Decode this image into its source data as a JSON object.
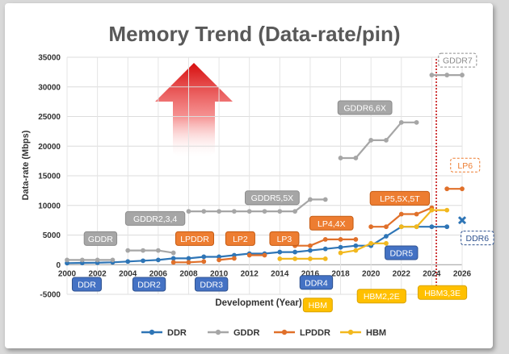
{
  "chart_data": {
    "type": "line",
    "title": "Memory Trend (Data-rate/pin)",
    "xlabel": "Development (Year)",
    "ylabel": "Data-rate (Mbps)",
    "xlim": [
      2000,
      2026
    ],
    "ylim": [
      -5000,
      35000
    ],
    "x_ticks": [
      "2000",
      "2002",
      "2004",
      "2006",
      "2008",
      "2010",
      "2012",
      "2014",
      "2016",
      "2018",
      "2020",
      "2022",
      "2024",
      "2026"
    ],
    "y_ticks": [
      "-5000",
      "0",
      "5000",
      "10000",
      "15000",
      "20000",
      "25000",
      "30000",
      "35000"
    ],
    "grid": true,
    "legend_position": "bottom",
    "colors": {
      "DDR": "#2e75b6",
      "GDDR": "#a6a6a6",
      "LPDDR": "#e0702a",
      "HBM": "#f2b81e",
      "future_line": "#c00000",
      "arrow": "#e02020"
    },
    "series": [
      {
        "name": "DDR",
        "points": [
          [
            2000,
            266
          ],
          [
            2001,
            300
          ],
          [
            2002,
            333
          ],
          [
            2003,
            400
          ],
          [
            2004,
            533
          ],
          [
            2005,
            667
          ],
          [
            2006,
            800
          ],
          [
            2007,
            1066
          ],
          [
            2008,
            1066
          ],
          [
            2009,
            1333
          ],
          [
            2010,
            1333
          ],
          [
            2011,
            1600
          ],
          [
            2012,
            1866
          ],
          [
            2013,
            1866
          ],
          [
            2014,
            2133
          ],
          [
            2015,
            2133
          ],
          [
            2016,
            2400
          ],
          [
            2017,
            2666
          ],
          [
            2018,
            2933
          ],
          [
            2019,
            3200
          ],
          [
            2020,
            3200
          ],
          [
            2021,
            4800
          ],
          [
            2022,
            6400
          ],
          [
            2023,
            6400
          ],
          [
            2024,
            6400
          ],
          [
            2025,
            6400
          ]
        ]
      },
      {
        "name": "GDDR",
        "segments": [
          [
            [
              2000,
              800
            ],
            [
              2001,
              800
            ],
            [
              2002,
              800
            ],
            [
              2003,
              800
            ]
          ],
          [
            [
              2004,
              2400
            ],
            [
              2005,
              2400
            ],
            [
              2006,
              2400
            ],
            [
              2007,
              2000
            ]
          ],
          [
            [
              2008,
              9000
            ],
            [
              2009,
              9000
            ],
            [
              2010,
              9000
            ],
            [
              2011,
              9000
            ],
            [
              2012,
              9000
            ],
            [
              2013,
              9000
            ],
            [
              2014,
              9000
            ],
            [
              2015,
              9000
            ],
            [
              2016,
              11000
            ],
            [
              2017,
              11000
            ]
          ],
          [
            [
              2018,
              18000
            ],
            [
              2019,
              18000
            ],
            [
              2020,
              21000
            ],
            [
              2021,
              21000
            ],
            [
              2022,
              24000
            ],
            [
              2023,
              24000
            ]
          ],
          [
            [
              2024,
              32000
            ],
            [
              2025,
              32000
            ],
            [
              2026,
              32000
            ]
          ]
        ]
      },
      {
        "name": "LPDDR",
        "segments": [
          [
            [
              2007,
              400
            ],
            [
              2008,
              400
            ],
            [
              2009,
              533
            ]
          ],
          [
            [
              2010,
              800
            ],
            [
              2011,
              1066
            ]
          ],
          [
            [
              2012,
              1600
            ],
            [
              2013,
              1600
            ]
          ],
          [
            [
              2015,
              3200
            ],
            [
              2016,
              3200
            ],
            [
              2017,
              4266
            ],
            [
              2018,
              4266
            ],
            [
              2019,
              4266
            ]
          ],
          [
            [
              2020,
              6400
            ],
            [
              2021,
              6400
            ],
            [
              2022,
              8533
            ],
            [
              2023,
              8533
            ],
            [
              2024,
              9600
            ]
          ],
          [
            [
              2025,
              12800
            ],
            [
              2026,
              12800
            ]
          ]
        ]
      },
      {
        "name": "HBM",
        "segments": [
          [
            [
              2014,
              1000
            ],
            [
              2015,
              1000
            ],
            [
              2016,
              1000
            ],
            [
              2017,
              1000
            ]
          ],
          [
            [
              2018,
              2000
            ],
            [
              2019,
              2400
            ],
            [
              2020,
              3600
            ],
            [
              2021,
              3600
            ]
          ],
          [
            [
              2022,
              6400
            ],
            [
              2023,
              6400
            ],
            [
              2024,
              9200
            ],
            [
              2025,
              9200
            ]
          ]
        ]
      }
    ],
    "future_marker_x": 2024.3,
    "ddr6_marker": [
      2026,
      7500
    ],
    "generation_labels": [
      {
        "text": "DDR",
        "x": 2001.3,
        "y": -3300,
        "style": "ddr"
      },
      {
        "text": "DDR2",
        "x": 2005.4,
        "y": -3300,
        "style": "ddr"
      },
      {
        "text": "DDR3",
        "x": 2009.5,
        "y": -3300,
        "style": "ddr"
      },
      {
        "text": "DDR4",
        "x": 2016.4,
        "y": -3000,
        "style": "ddr"
      },
      {
        "text": "DDR5",
        "x": 2022.0,
        "y": 2000,
        "style": "ddr"
      },
      {
        "text": "DDR6",
        "x": 2027.0,
        "y": 4500,
        "style": "ddr-dashed"
      },
      {
        "text": "GDDR",
        "x": 2002.2,
        "y": 4400,
        "style": "gddr"
      },
      {
        "text": "GDDR2,3,4",
        "x": 2005.8,
        "y": 7800,
        "style": "gddr"
      },
      {
        "text": "GDDR5,5X",
        "x": 2013.5,
        "y": 11300,
        "style": "gddr"
      },
      {
        "text": "GDDR6,6X",
        "x": 2019.6,
        "y": 26500,
        "style": "gddr"
      },
      {
        "text": "GDDR7",
        "x": 2025.7,
        "y": 34500,
        "style": "gddr-dashed"
      },
      {
        "text": "LPDDR",
        "x": 2008.4,
        "y": 4400,
        "style": "lpddr"
      },
      {
        "text": "LP2",
        "x": 2011.4,
        "y": 4400,
        "style": "lpddr"
      },
      {
        "text": "LP3",
        "x": 2014.3,
        "y": 4400,
        "style": "lpddr"
      },
      {
        "text": "LP4,4X",
        "x": 2017.4,
        "y": 7000,
        "style": "lpddr"
      },
      {
        "text": "LP5,5X,5T",
        "x": 2021.9,
        "y": 11200,
        "style": "lpddr"
      },
      {
        "text": "LP6",
        "x": 2026.2,
        "y": 16800,
        "style": "lpddr-dashed"
      },
      {
        "text": "HBM",
        "x": 2016.5,
        "y": -6800,
        "style": "hbm"
      },
      {
        "text": "HBM2,2E",
        "x": 2020.7,
        "y": -5300,
        "style": "hbm"
      },
      {
        "text": "HBM3,3E",
        "x": 2024.7,
        "y": -4700,
        "style": "hbm"
      }
    ]
  }
}
